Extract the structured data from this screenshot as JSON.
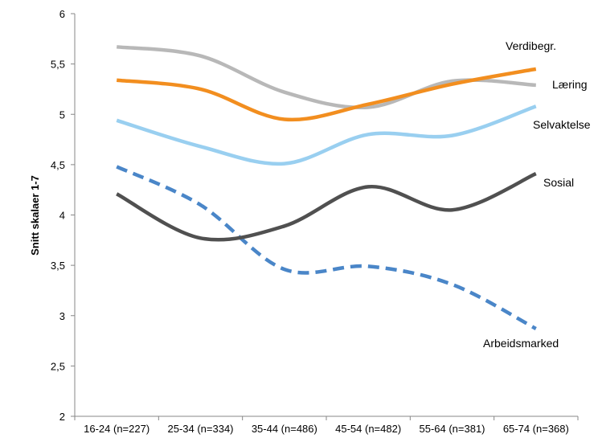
{
  "chart_data": {
    "type": "line",
    "title": "",
    "xlabel": "",
    "ylabel": "Snitt skalaer 1-7",
    "ylim": [
      2,
      6
    ],
    "yticks": [
      "2",
      "2,5",
      "3",
      "3,5",
      "4",
      "4,5",
      "5",
      "5,5",
      "6"
    ],
    "categories": [
      "16-24 (n=227)",
      "25-34 (n=334)",
      "35-44 (n=486)",
      "45-54 (n=482)",
      "55-64 (n=381)",
      "65-74 (n=368)"
    ],
    "grid": false,
    "legend": "none",
    "series": [
      {
        "name": "Verdibegr.",
        "values": [
          5.67,
          5.58,
          5.22,
          5.07,
          5.33,
          5.29
        ],
        "color": "#b8b8b8",
        "dashed": false
      },
      {
        "name": "Læring",
        "values": [
          5.34,
          5.25,
          4.95,
          5.1,
          5.3,
          5.45
        ],
        "color": "#f28e1f",
        "dashed": false
      },
      {
        "name": "Selvaktelse",
        "values": [
          4.94,
          4.68,
          4.51,
          4.8,
          4.79,
          5.08
        ],
        "color": "#99cff0",
        "dashed": false
      },
      {
        "name": "Sosial",
        "values": [
          4.21,
          3.77,
          3.89,
          4.28,
          4.05,
          4.41
        ],
        "color": "#505050",
        "dashed": false
      },
      {
        "name": "Arbeidsmarked",
        "values": [
          4.48,
          4.1,
          3.46,
          3.49,
          3.31,
          2.87
        ],
        "color": "#4a86c8",
        "dashed": true
      }
    ]
  }
}
